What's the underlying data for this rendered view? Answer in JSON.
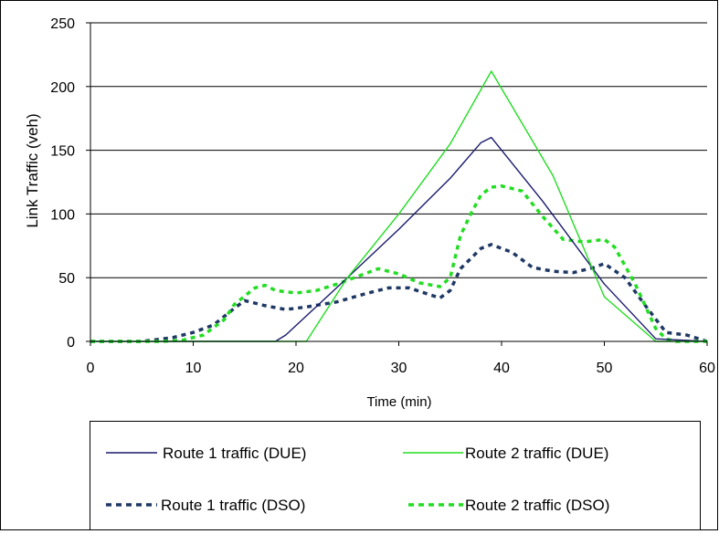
{
  "chart_data": {
    "type": "line",
    "title": "",
    "xlabel": "Time (min)",
    "ylabel": "Link Traffic (veh)",
    "xlim": [
      0,
      60
    ],
    "ylim": [
      0,
      250
    ],
    "xticks": [
      "0",
      "10",
      "20",
      "30",
      "40",
      "50",
      "60"
    ],
    "yticks": [
      "0",
      "50",
      "100",
      "150",
      "200",
      "250"
    ],
    "grid": "horizontal",
    "legend_position": "bottom",
    "series": [
      {
        "name": "Route 1 traffic (DUE)",
        "color": "#1a1a6e",
        "style": "solid",
        "x": [
          0,
          18,
          19,
          25,
          30,
          35,
          38,
          39,
          44,
          50,
          55,
          60
        ],
        "y": [
          0,
          0,
          5,
          50,
          88,
          128,
          156,
          160,
          110,
          45,
          2,
          0
        ]
      },
      {
        "name": "Route 2 traffic (DUE)",
        "color": "#22dd22",
        "style": "solid",
        "x": [
          0,
          21,
          25,
          30,
          35,
          39,
          45,
          50,
          55,
          60
        ],
        "y": [
          0,
          0,
          50,
          100,
          155,
          212,
          130,
          35,
          0,
          0
        ]
      },
      {
        "name": "Route 1 traffic (DSO)",
        "color": "#1f3864",
        "style": "dotted",
        "x": [
          0,
          5,
          8,
          10,
          12,
          14,
          15,
          17,
          19,
          21,
          24,
          27,
          29,
          31,
          34,
          35,
          36,
          38,
          39,
          41,
          43,
          45,
          47,
          49,
          50,
          52,
          54,
          56,
          58,
          60
        ],
        "y": [
          0,
          0,
          3,
          7,
          13,
          26,
          32,
          28,
          25,
          27,
          31,
          38,
          42,
          42,
          34,
          40,
          57,
          73,
          76,
          70,
          58,
          55,
          54,
          58,
          61,
          50,
          28,
          7,
          5,
          0
        ]
      },
      {
        "name": "Route 2 traffic (DSO)",
        "color": "#22dd22",
        "style": "dotted",
        "x": [
          0,
          7,
          9,
          11,
          13,
          14,
          16,
          17,
          18,
          20,
          22,
          24,
          26,
          28,
          30,
          32,
          34,
          35,
          36,
          37,
          38,
          39,
          40,
          42,
          44,
          46,
          48,
          50,
          51,
          53,
          55,
          56,
          57,
          60
        ],
        "y": [
          0,
          0,
          1,
          5,
          17,
          29,
          42,
          44,
          40,
          38,
          40,
          45,
          51,
          57,
          53,
          46,
          43,
          50,
          83,
          100,
          115,
          121,
          122,
          118,
          98,
          80,
          78,
          80,
          74,
          45,
          10,
          2,
          0,
          0
        ]
      }
    ]
  }
}
